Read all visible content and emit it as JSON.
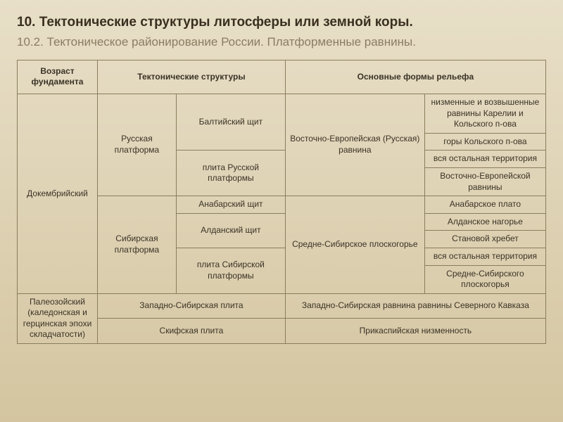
{
  "heading": {
    "title": "10. Тектонические структуры литосферы или земной коры.",
    "subtitle": "10.2. Тектоническое районирование России. Платформенные равнины."
  },
  "table": {
    "headers": {
      "age": "Возраст фундамента",
      "structures": "Тектонические структуры",
      "relief": "Основные формы рельефа"
    },
    "cells": {
      "precambrian": "Докембрийский",
      "russian_platform": "Русская платформа",
      "baltic_shield": "Балтийский щит",
      "russian_plate": "плита Русской платформы",
      "siberian_platform": "Сибирская платформа",
      "anabar_shield": "Анабарский щит",
      "aldan_shield": "Алданский щит",
      "siberian_plate": "плита Сибирской платформы",
      "east_european_plain": "Восточно-Европейская (Русская) равнина",
      "mid_siberian_plateau": "Средне-Сибирское плоскогорье",
      "karelia_kola": "низменные и возвышенные равнины Карелии и Кольского п-ова",
      "kola_mountains": "горы Кольского п-ова",
      "rest_territory1": "вся остальная территория",
      "east_european_plains": "Восточно-Европейской равнины",
      "anabar_plateau": "Анабарское плато",
      "aldan_highlands": "Алданское нагорье",
      "stanovoy_ridge": "Становой хребет",
      "rest_territory2": "вся остальная территория",
      "mid_siberian_plateaus": "Средне-Сибирского плоскогорья",
      "paleozoic": "Палеозойский (каледонская и герцинская эпохи складчатости)",
      "west_siberian_plate": "Западно-Сибирская плита",
      "scythian_plate": "Скифская плита",
      "west_siberian_plain": "Западно-Сибирская равнина равнины Северного Кавказа",
      "caspian_lowland": "Прикаспийская низменность"
    }
  },
  "styles": {
    "bg_gradient_start": "#e8dfc8",
    "bg_gradient_end": "#d4c5a0",
    "title_color": "#3a2f1f",
    "subtitle_color": "#8a7d62",
    "border_color": "#8a7d5c",
    "text_color": "#3a3226",
    "title_fontsize": 19,
    "subtitle_fontsize": 17,
    "table_fontsize": 12
  }
}
